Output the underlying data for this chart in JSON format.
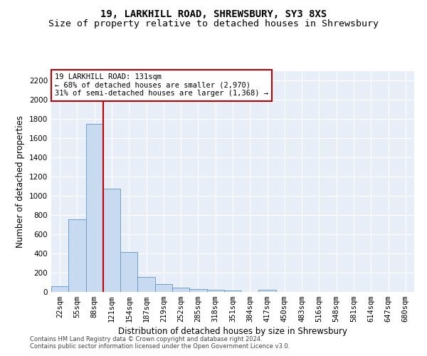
{
  "title": "19, LARKHILL ROAD, SHREWSBURY, SY3 8XS",
  "subtitle": "Size of property relative to detached houses in Shrewsbury",
  "xlabel": "Distribution of detached houses by size in Shrewsbury",
  "ylabel": "Number of detached properties",
  "bin_labels": [
    "22sqm",
    "55sqm",
    "88sqm",
    "121sqm",
    "154sqm",
    "187sqm",
    "219sqm",
    "252sqm",
    "285sqm",
    "318sqm",
    "351sqm",
    "384sqm",
    "417sqm",
    "450sqm",
    "483sqm",
    "516sqm",
    "548sqm",
    "581sqm",
    "614sqm",
    "647sqm",
    "680sqm"
  ],
  "bar_heights": [
    60,
    760,
    1750,
    1075,
    415,
    155,
    83,
    44,
    33,
    20,
    18,
    0,
    20,
    0,
    0,
    0,
    0,
    0,
    0,
    0,
    0
  ],
  "bar_color": "#c8daf0",
  "bar_edge_color": "#6096c8",
  "vline_color": "#c00000",
  "vline_x_index": 3,
  "annotation_line1": "19 LARKHILL ROAD: 131sqm",
  "annotation_line2": "← 68% of detached houses are smaller (2,970)",
  "annotation_line3": "31% of semi-detached houses are larger (1,368) →",
  "annotation_box_edgecolor": "#c00000",
  "ylim": [
    0,
    2300
  ],
  "yticks": [
    0,
    200,
    400,
    600,
    800,
    1000,
    1200,
    1400,
    1600,
    1800,
    2000,
    2200
  ],
  "footer_line1": "Contains HM Land Registry data © Crown copyright and database right 2024.",
  "footer_line2": "Contains public sector information licensed under the Open Government Licence v3.0.",
  "bg_color": "#e8eef8",
  "title_fontsize": 10,
  "subtitle_fontsize": 9.5,
  "ylabel_fontsize": 8.5,
  "xlabel_fontsize": 8.5,
  "tick_fontsize": 7.5,
  "annotation_fontsize": 7.5,
  "footer_fontsize": 6.0
}
